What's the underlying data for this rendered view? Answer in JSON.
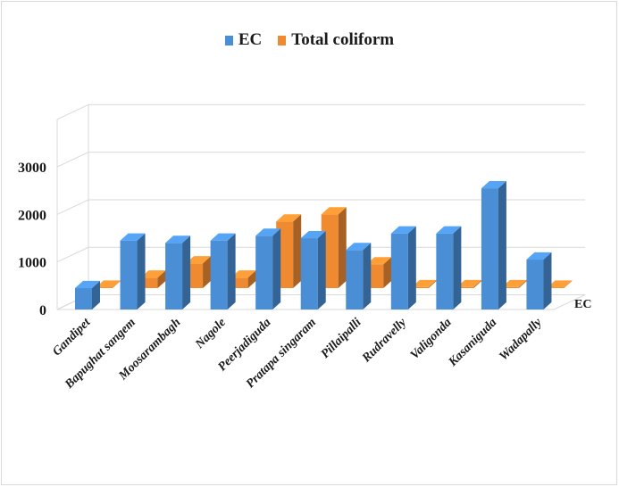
{
  "chart_data": {
    "type": "bar",
    "title": "",
    "xlabel": "",
    "ylabel": "",
    "depth_axis_label": "EC",
    "ylim": [
      0,
      3000
    ],
    "y_ticks": [
      "0",
      "1000",
      "2000",
      "3000"
    ],
    "categories": [
      "Gandipet",
      "Bapughat sangem",
      "Moosarambagh",
      "Nagole",
      "Peerjadiguda",
      "Pratapa singaram",
      "Pillaipalli",
      "Rudravelly",
      "Valigonda",
      "Kasaniguda",
      "Wadapally"
    ],
    "series": [
      {
        "name": "EC",
        "color": "#4a8fd6",
        "values": [
          450,
          1450,
          1400,
          1450,
          1550,
          1500,
          1250,
          1600,
          1600,
          2550,
          1050
        ]
      },
      {
        "name": "Total coliform",
        "color": "#f08a30",
        "values": [
          0,
          220,
          520,
          220,
          1400,
          1550,
          500,
          20,
          20,
          20,
          0
        ]
      }
    ],
    "grid": true,
    "legend_position": "top",
    "style": "3d-clustered-column"
  }
}
